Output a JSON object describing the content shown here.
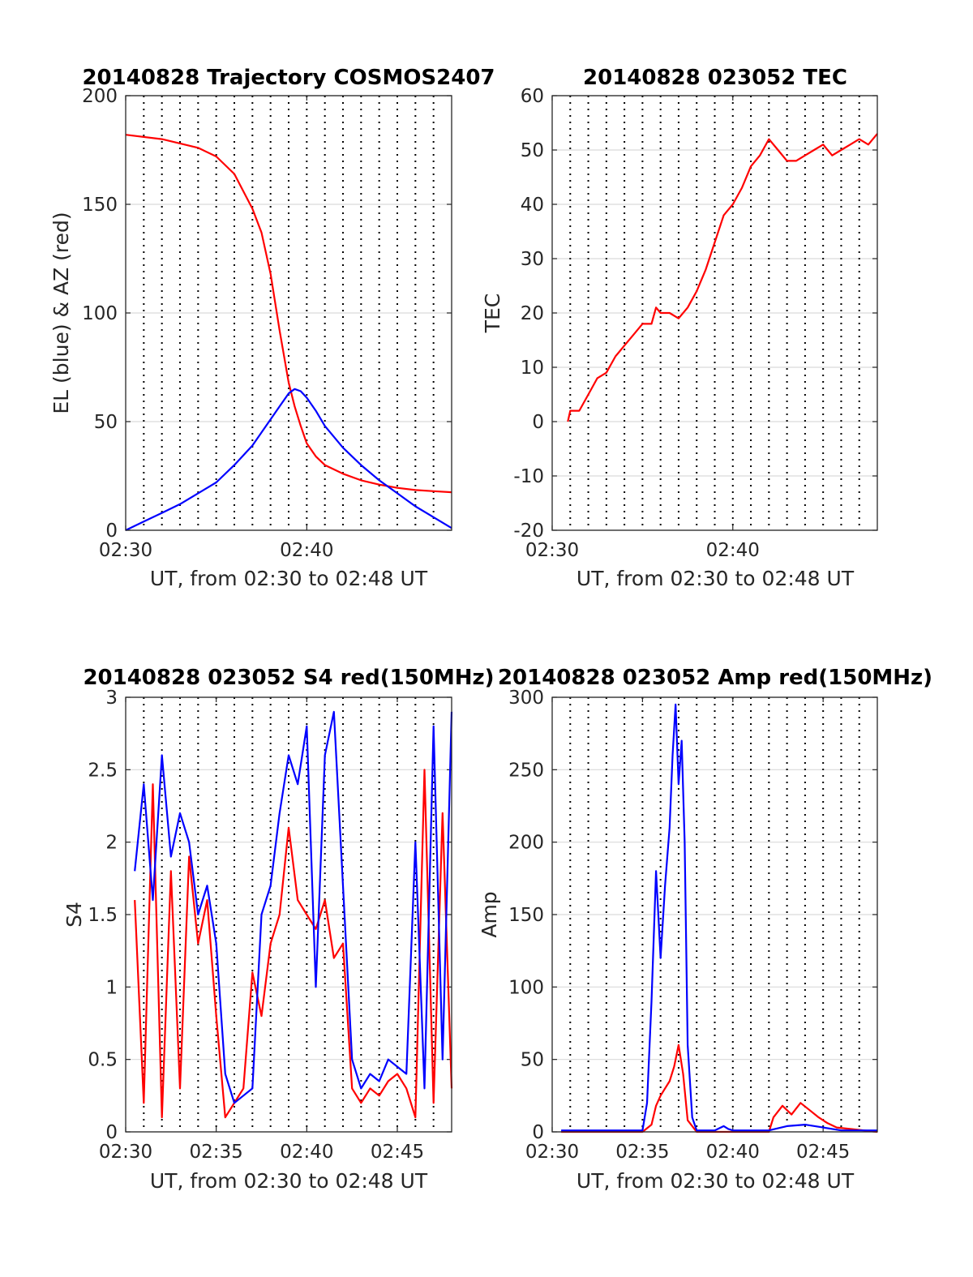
{
  "figure": {
    "background": "#ffffff"
  },
  "colors": {
    "red": "#ff0000",
    "blue": "#0000ff",
    "grid": "#d9d9d9",
    "axis": "#262626"
  },
  "chart_data": [
    {
      "id": "traj",
      "type": "line",
      "title": "20140828 Trajectory COSMOS2407",
      "xlabel": "UT, from 02:30 to 02:48 UT",
      "ylabel": "EL (blue) & AZ (red)",
      "xlim": [
        "02:30",
        "02:48"
      ],
      "ylim": [
        0,
        200
      ],
      "x_ticks": [
        "02:30",
        "02:40"
      ],
      "y_ticks": [
        0,
        50,
        100,
        150,
        200
      ],
      "grid": true,
      "dotted_minute_lines": true,
      "series": [
        {
          "color": "#ff0000",
          "x": [
            "02:30",
            "02:32",
            "02:34",
            "02:35",
            "02:36",
            "02:37",
            "02:37:30",
            "02:38",
            "02:38:30",
            "02:39",
            "02:39:20",
            "02:39:40",
            "02:40",
            "02:40:30",
            "02:41",
            "02:42",
            "02:43",
            "02:44",
            "02:45",
            "02:46",
            "02:47",
            "02:48"
          ],
          "values": [
            182,
            180,
            176,
            172,
            164,
            148,
            137,
            118,
            92,
            68,
            57,
            48,
            40,
            34,
            30,
            26,
            23,
            21,
            19.5,
            18.5,
            18,
            17.5
          ]
        },
        {
          "color": "#0000ff",
          "x": [
            "02:30",
            "02:31",
            "02:32",
            "02:33",
            "02:34",
            "02:35",
            "02:36",
            "02:37",
            "02:38",
            "02:38:30",
            "02:39",
            "02:39:20",
            "02:39:40",
            "02:40",
            "02:40:30",
            "02:41",
            "02:42",
            "02:43",
            "02:44",
            "02:45",
            "02:46",
            "02:47",
            "02:48"
          ],
          "values": [
            0,
            4,
            8,
            12,
            17,
            22,
            30,
            39,
            51,
            57,
            63,
            65,
            64,
            61,
            55,
            48,
            38,
            30,
            23,
            17,
            11,
            6,
            1
          ]
        }
      ]
    },
    {
      "id": "tec",
      "type": "line",
      "title": "20140828 023052 TEC",
      "xlabel": "UT, from 02:30 to 02:48 UT",
      "ylabel": "TEC",
      "xlim": [
        "02:30",
        "02:48"
      ],
      "ylim": [
        -20,
        60
      ],
      "x_ticks": [
        "02:30",
        "02:40"
      ],
      "y_ticks": [
        -20,
        -10,
        0,
        10,
        20,
        30,
        40,
        50,
        60
      ],
      "grid": true,
      "dotted_minute_lines": true,
      "series": [
        {
          "color": "#ff0000",
          "x": [
            "02:30:52",
            "02:31",
            "02:31:30",
            "02:32",
            "02:32:30",
            "02:33",
            "02:33:30",
            "02:34",
            "02:34:30",
            "02:35",
            "02:35:30",
            "02:35:45",
            "02:36",
            "02:36:30",
            "02:37",
            "02:37:30",
            "02:38",
            "02:38:30",
            "02:39",
            "02:39:30",
            "02:40",
            "02:40:30",
            "02:41",
            "02:41:30",
            "02:42",
            "02:42:30",
            "02:43",
            "02:43:30",
            "02:44",
            "02:44:30",
            "02:45",
            "02:45:30",
            "02:46",
            "02:46:30",
            "02:47",
            "02:47:30",
            "02:48"
          ],
          "values": [
            0,
            2,
            2,
            5,
            8,
            9,
            12,
            14,
            16,
            18,
            18,
            21,
            20,
            20,
            19,
            21,
            24,
            28,
            33,
            38,
            40,
            43,
            47,
            49,
            52,
            50,
            48,
            48,
            49,
            50,
            51,
            49,
            50,
            51,
            52,
            51,
            53
          ]
        }
      ]
    },
    {
      "id": "s4",
      "type": "line",
      "title": "20140828 023052 S4 red(150MHz)",
      "xlabel": "UT, from 02:30 to 02:48 UT",
      "ylabel": "S4",
      "xlim": [
        "02:30",
        "02:48"
      ],
      "ylim": [
        0,
        3
      ],
      "x_ticks": [
        "02:30",
        "02:35",
        "02:40",
        "02:45"
      ],
      "y_ticks": [
        0,
        0.5,
        1,
        1.5,
        2,
        2.5,
        3
      ],
      "grid": true,
      "dotted_minute_lines": true,
      "series": [
        {
          "color": "#ff0000",
          "x": [
            "02:30:30",
            "02:31",
            "02:31:30",
            "02:32",
            "02:32:30",
            "02:33",
            "02:33:30",
            "02:34",
            "02:34:30",
            "02:35",
            "02:35:30",
            "02:36",
            "02:36:30",
            "02:37",
            "02:37:30",
            "02:38",
            "02:38:30",
            "02:39",
            "02:39:30",
            "02:40",
            "02:40:30",
            "02:41",
            "02:41:30",
            "02:42",
            "02:42:30",
            "02:43",
            "02:43:30",
            "02:44",
            "02:44:30",
            "02:45",
            "02:45:30",
            "02:46",
            "02:46:30",
            "02:47",
            "02:47:30",
            "02:48"
          ],
          "values": [
            1.6,
            0.2,
            2.4,
            0.1,
            1.8,
            0.3,
            1.9,
            1.3,
            1.6,
            0.8,
            0.1,
            0.2,
            0.3,
            1.1,
            0.8,
            1.3,
            1.5,
            2.1,
            1.6,
            1.5,
            1.4,
            1.6,
            1.2,
            1.3,
            0.3,
            0.2,
            0.3,
            0.25,
            0.35,
            0.4,
            0.3,
            0.1,
            2.5,
            0.2,
            2.2,
            0.3
          ]
        },
        {
          "color": "#0000ff",
          "x": [
            "02:30:30",
            "02:31",
            "02:31:30",
            "02:32",
            "02:32:30",
            "02:33",
            "02:33:30",
            "02:34",
            "02:34:30",
            "02:35",
            "02:35:30",
            "02:36",
            "02:36:30",
            "02:37",
            "02:37:30",
            "02:38",
            "02:38:30",
            "02:39",
            "02:39:30",
            "02:40",
            "02:40:30",
            "02:41",
            "02:41:30",
            "02:42",
            "02:42:30",
            "02:43",
            "02:43:30",
            "02:44",
            "02:44:30",
            "02:45",
            "02:45:30",
            "02:46",
            "02:46:30",
            "02:47",
            "02:47:30",
            "02:48"
          ],
          "values": [
            1.8,
            2.4,
            1.6,
            2.6,
            1.9,
            2.2,
            2.0,
            1.5,
            1.7,
            1.3,
            0.4,
            0.2,
            0.25,
            0.3,
            1.5,
            1.7,
            2.2,
            2.6,
            2.4,
            2.8,
            1.0,
            2.6,
            2.9,
            1.7,
            0.5,
            0.3,
            0.4,
            0.35,
            0.5,
            0.45,
            0.4,
            2.0,
            0.3,
            2.8,
            0.5,
            2.9
          ]
        }
      ]
    },
    {
      "id": "amp",
      "type": "line",
      "title": "20140828 023052 Amp red(150MHz)",
      "xlabel": "UT, from 02:30 to 02:48 UT",
      "ylabel": "Amp",
      "xlim": [
        "02:30",
        "02:48"
      ],
      "ylim": [
        0,
        300
      ],
      "x_ticks": [
        "02:30",
        "02:35",
        "02:40",
        "02:45"
      ],
      "y_ticks": [
        0,
        50,
        100,
        150,
        200,
        250,
        300
      ],
      "grid": true,
      "dotted_minute_lines": true,
      "series": [
        {
          "color": "#ff0000",
          "x": [
            "02:30:30",
            "02:35",
            "02:35:30",
            "02:35:45",
            "02:36",
            "02:36:15",
            "02:36:30",
            "02:36:45",
            "02:37",
            "02:37:15",
            "02:37:30",
            "02:38",
            "02:40",
            "02:42",
            "02:42:15",
            "02:42:45",
            "02:43:15",
            "02:43:45",
            "02:44:15",
            "02:44:45",
            "02:45:15",
            "02:45:45",
            "02:48"
          ],
          "values": [
            0,
            0,
            5,
            18,
            25,
            30,
            35,
            45,
            60,
            40,
            8,
            0,
            0,
            0,
            10,
            18,
            12,
            20,
            15,
            10,
            6,
            3,
            0
          ]
        },
        {
          "color": "#0000ff",
          "x": [
            "02:30:30",
            "02:35",
            "02:35:15",
            "02:35:30",
            "02:35:45",
            "02:36",
            "02:36:15",
            "02:36:30",
            "02:36:40",
            "02:36:50",
            "02:37",
            "02:37:10",
            "02:37:20",
            "02:37:30",
            "02:37:45",
            "02:38",
            "02:39",
            "02:39:30",
            "02:39:45",
            "02:40",
            "02:42",
            "02:43",
            "02:44",
            "02:45",
            "02:46",
            "02:48"
          ],
          "values": [
            1,
            1,
            20,
            90,
            180,
            120,
            170,
            210,
            260,
            295,
            240,
            270,
            200,
            60,
            10,
            1,
            1,
            4,
            2,
            1,
            1,
            4,
            5,
            3,
            1,
            1
          ]
        }
      ]
    }
  ]
}
